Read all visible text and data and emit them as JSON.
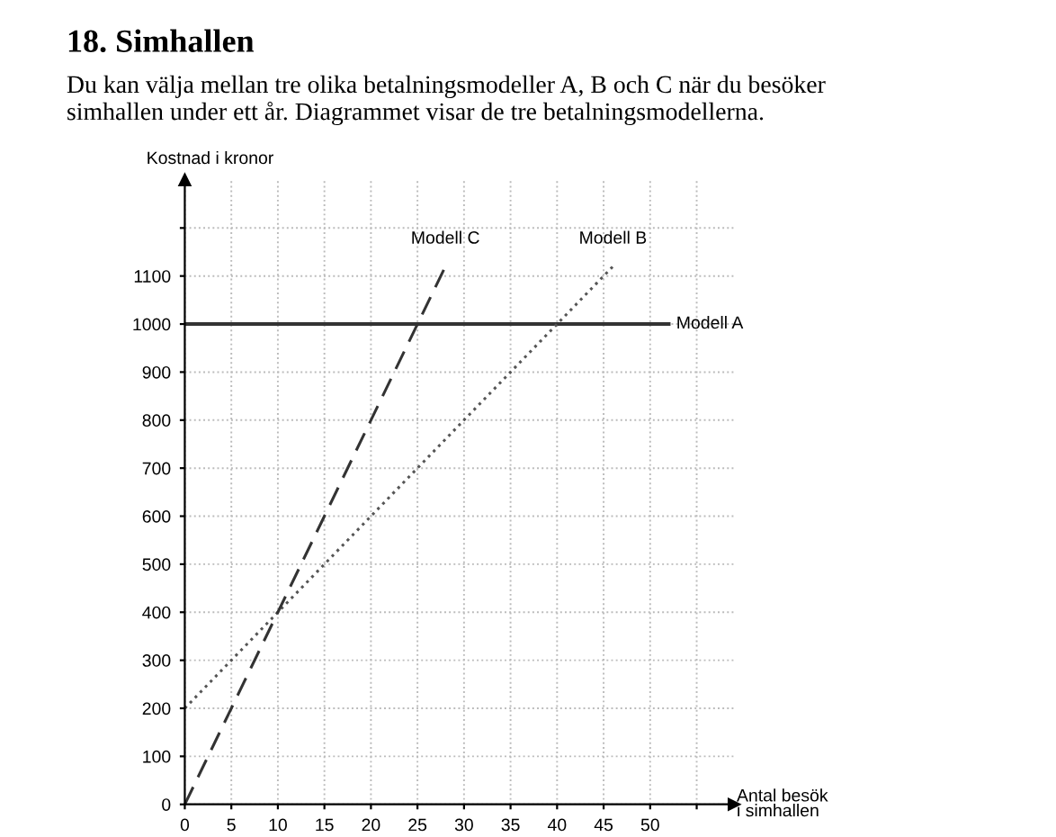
{
  "chart_data": {
    "type": "line",
    "title": "18. Simhallen",
    "subtitle": "Du kan välja mellan tre olika betalningsmodeller A, B och C när du besöker\nsimhallen under ett år. Diagrammet visar de tre betalningsmodellerna.",
    "xlabel": "Antal besök\ni simhallen",
    "ylabel": "Kostnad i kronor",
    "series": [
      {
        "name": "Modell A",
        "color": "#333333",
        "x": [
          0,
          52
        ],
        "values": [
          1000,
          1000
        ],
        "line_style": "solid"
      },
      {
        "name": "Modell B",
        "color": "#555555",
        "x": [
          0,
          46
        ],
        "values": [
          200,
          1120
        ],
        "line_style": "dotted"
      },
      {
        "name": "Modell C",
        "color": "#333333",
        "x": [
          0,
          28
        ],
        "values": [
          0,
          1120
        ],
        "line_style": "dashed"
      }
    ],
    "xlim": [
      0,
      59
    ],
    "ylim": [
      0,
      1300
    ],
    "xticks": [
      0,
      5,
      10,
      15,
      20,
      25,
      30,
      35,
      40,
      45,
      50,
      {
        "value": 55,
        "label": null
      }
    ],
    "yticks": [
      0,
      100,
      200,
      300,
      400,
      500,
      600,
      700,
      800,
      900,
      1000,
      1100,
      {
        "value": 1200,
        "label": null
      }
    ],
    "grid": true,
    "legend": false,
    "marker": "none"
  }
}
